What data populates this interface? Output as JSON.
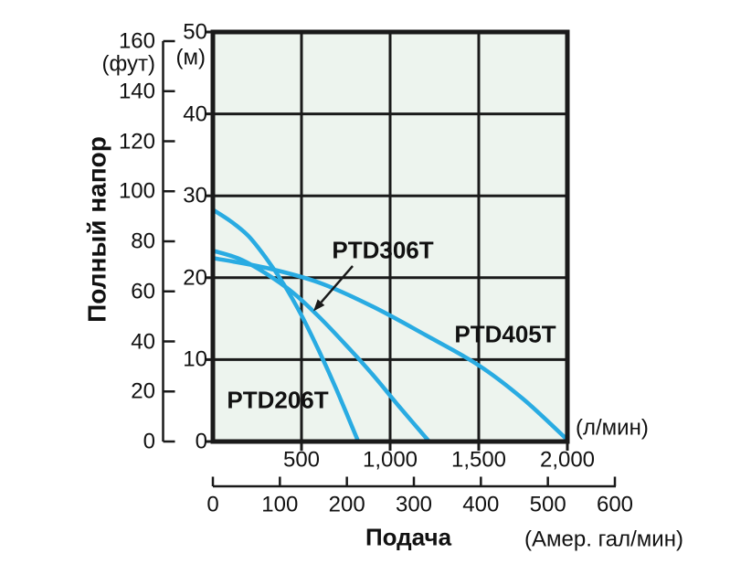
{
  "colors": {
    "curve": "#29ABE2",
    "plot_bg": "#EDF4EE",
    "grid": "#1A1A1A",
    "text": "#111111",
    "background": "#FFFFFF"
  },
  "y_axis": {
    "title": "Полный напор",
    "ft_unit": "(фут)",
    "m_unit": "(м)"
  },
  "x_axis": {
    "title": "Подача",
    "lpm_unit": "(л/мин)",
    "gal_unit": "(Амер. гал/мин)"
  },
  "chart_data": {
    "type": "line",
    "title": "",
    "xlabel": "Подача",
    "ylabel": "Полный напор",
    "grid": true,
    "y_axis_m": {
      "unit": "(м)",
      "range": [
        0,
        50
      ],
      "ticks": [
        50,
        40,
        30,
        20,
        10,
        0
      ],
      "labels": [
        "50",
        "40",
        "30",
        "20",
        "10",
        "0"
      ]
    },
    "y_axis_ft": {
      "unit": "(фут)",
      "range": [
        0,
        160
      ],
      "ticks": [
        160,
        140,
        120,
        100,
        80,
        60,
        40,
        20,
        0
      ],
      "labels": [
        "160",
        "140",
        "120",
        "100",
        "80",
        "60",
        "40",
        "20",
        "0"
      ]
    },
    "x_axis_lpm": {
      "unit": "(л/мин)",
      "range": [
        0,
        2000
      ],
      "gridlines": [
        500,
        1000,
        1500
      ],
      "ticks": [
        500,
        1000,
        1500,
        2000
      ],
      "labels": [
        "500",
        "1,000",
        "1,500",
        "2,000"
      ]
    },
    "x_axis_gal": {
      "unit": "(Амер. гал/мин)",
      "range": [
        0,
        600
      ],
      "ticks": [
        0,
        100,
        200,
        300,
        400,
        500,
        600
      ],
      "labels": [
        "0",
        "100",
        "200",
        "300",
        "400",
        "500",
        "600"
      ]
    },
    "series": [
      {
        "name": "PTD206T",
        "x_unit": "л/мин",
        "y_unit": "м",
        "points": [
          [
            0,
            28.3
          ],
          [
            100,
            26.9
          ],
          [
            200,
            25.1
          ],
          [
            300,
            22.4
          ],
          [
            400,
            19.2
          ],
          [
            500,
            15.4
          ],
          [
            600,
            11.0
          ],
          [
            700,
            6.2
          ],
          [
            820,
            0
          ]
        ]
      },
      {
        "name": "PTD306T",
        "x_unit": "л/мин",
        "y_unit": "м",
        "points": [
          [
            0,
            23.3
          ],
          [
            150,
            22.3
          ],
          [
            300,
            20.5
          ],
          [
            450,
            18.2
          ],
          [
            600,
            15.2
          ],
          [
            750,
            11.8
          ],
          [
            900,
            8.2
          ],
          [
            1050,
            4.3
          ],
          [
            1220,
            0
          ]
        ]
      },
      {
        "name": "PTD405T",
        "x_unit": "л/мин",
        "y_unit": "м",
        "points": [
          [
            0,
            22.4
          ],
          [
            300,
            21.2
          ],
          [
            600,
            19.4
          ],
          [
            900,
            16.5
          ],
          [
            1200,
            13.0
          ],
          [
            1500,
            9.3
          ],
          [
            1750,
            5.2
          ],
          [
            2000,
            0.2
          ]
        ]
      }
    ],
    "annotations": [
      {
        "text": "PTD306T",
        "arrow_to_lpm": 567,
        "arrow_to_m": 15.9
      }
    ]
  }
}
